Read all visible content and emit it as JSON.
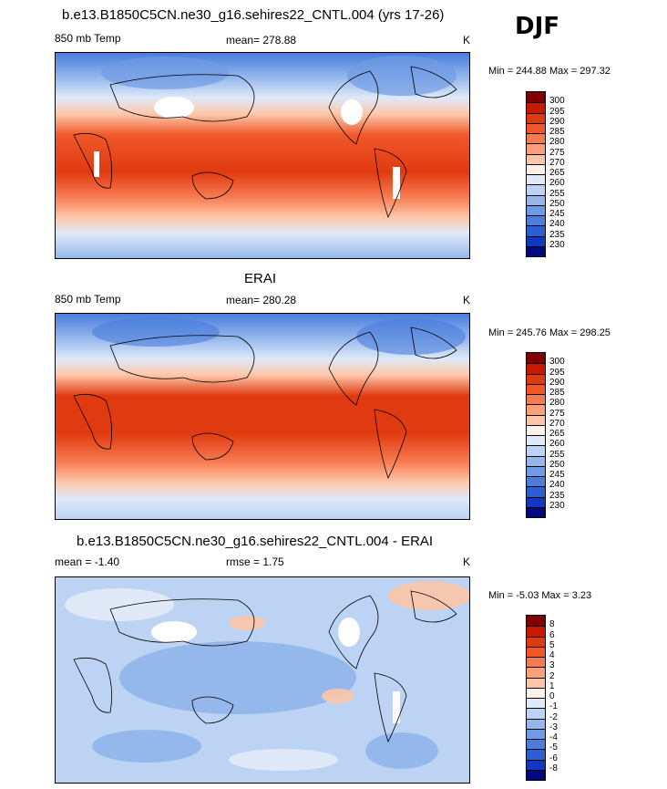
{
  "season": "DJF",
  "panels": [
    {
      "title": "b.e13.B1850C5CN.ne30_g16.sehires22_CNTL.004 (yrs 17-26)",
      "left_label": "850 mb Temp",
      "center_label": "mean= 278.88",
      "units": "K",
      "minmax": "Min = 244.88 Max = 297.32",
      "levels": [
        "300",
        "295",
        "290",
        "285",
        "280",
        "275",
        "270",
        "265",
        "260",
        "255",
        "250",
        "245",
        "240",
        "235",
        "230"
      ],
      "colors": [
        "#7f0000",
        "#c91a00",
        "#e03a10",
        "#f0582a",
        "#f77a50",
        "#fb9e7a",
        "#fdc6a8",
        "#fdf0e6",
        "#dfe9f8",
        "#bcd3f3",
        "#95b8ec",
        "#6f9be4",
        "#4a7ddc",
        "#2b5ed2",
        "#1038c0",
        "#000a80"
      ],
      "gradient": "temp"
    },
    {
      "title": "ERAI",
      "left_label": "850 mb Temp",
      "center_label": "mean= 280.28",
      "units": "K",
      "minmax": "Min = 245.76 Max = 298.25",
      "levels": [
        "300",
        "295",
        "290",
        "285",
        "280",
        "275",
        "270",
        "265",
        "260",
        "255",
        "250",
        "245",
        "240",
        "235",
        "230"
      ],
      "colors": [
        "#7f0000",
        "#c91a00",
        "#e03a10",
        "#f0582a",
        "#f77a50",
        "#fb9e7a",
        "#fdc6a8",
        "#fdf0e6",
        "#dfe9f8",
        "#bcd3f3",
        "#95b8ec",
        "#6f9be4",
        "#4a7ddc",
        "#2b5ed2",
        "#1038c0",
        "#000a80"
      ],
      "gradient": "temp"
    },
    {
      "title": "b.e13.B1850C5CN.ne30_g16.sehires22_CNTL.004 - ERAI",
      "left_label": "mean =  -1.40",
      "center_label": "rmse =   1.75",
      "units": "K",
      "minmax": "Min =  -5.03 Max =   3.23",
      "levels": [
        "8",
        "6",
        "5",
        "4",
        "3",
        "2",
        "1",
        "0",
        "-1",
        "-2",
        "-3",
        "-4",
        "-5",
        "-6",
        "-8"
      ],
      "colors": [
        "#7f0000",
        "#c91a00",
        "#e03a10",
        "#f0582a",
        "#f77a50",
        "#fb9e7a",
        "#fdc6a8",
        "#fdf0e6",
        "#dfe9f8",
        "#bcd3f3",
        "#95b8ec",
        "#6f9be4",
        "#4a7ddc",
        "#2b5ed2",
        "#1038c0",
        "#000a80"
      ],
      "gradient": "diff"
    }
  ]
}
